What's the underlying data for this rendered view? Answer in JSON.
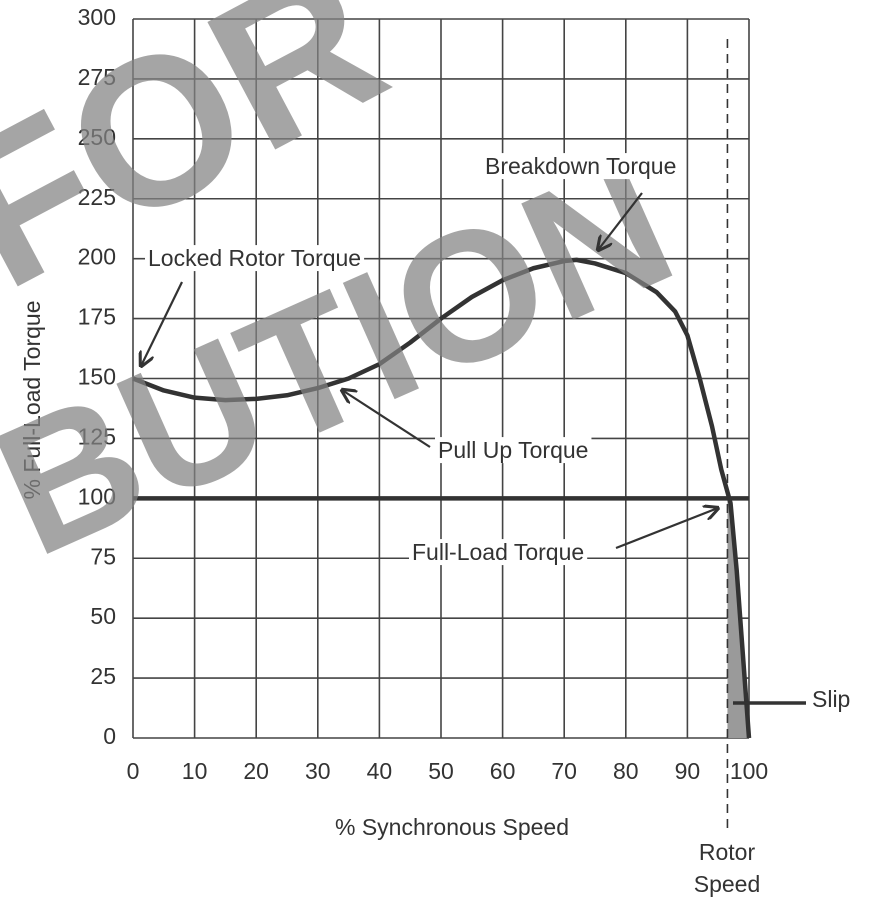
{
  "chart_data": {
    "type": "line",
    "xlabel": "% Synchronous Speed",
    "ylabel": "% Full-Load Torque",
    "series": [
      {
        "x": [
          0,
          5,
          10,
          15,
          20,
          25,
          30,
          35,
          40,
          45,
          50,
          55,
          60,
          65,
          70,
          72,
          75,
          80,
          85,
          88,
          90,
          92,
          94,
          95.5,
          97,
          98,
          99,
          100
        ],
        "values": [
          150,
          145,
          142,
          141,
          141.5,
          143,
          146,
          150,
          156,
          165,
          175,
          184,
          191,
          196,
          199,
          199.5,
          198,
          194,
          186,
          178,
          168,
          150,
          130,
          112,
          98,
          70,
          35,
          0
        ],
        "color": "#333333"
      }
    ],
    "reference_line": 100,
    "rotor_speed": 96.5,
    "xlim": [
      0,
      100
    ],
    "xticks": [
      0,
      10,
      20,
      30,
      40,
      50,
      60,
      70,
      80,
      90,
      100
    ],
    "ylim": [
      0,
      300
    ],
    "yticks": [
      0,
      25,
      50,
      75,
      100,
      125,
      150,
      175,
      200,
      225,
      250,
      275,
      300
    ],
    "grid": true,
    "annotations": [
      "Locked Rotor Torque",
      "Breakdown Torque",
      "Pull Up Torque",
      "Full-Load Torque",
      "Slip",
      "Rotor Speed"
    ],
    "watermark": [
      "FOR",
      "BUTION"
    ]
  }
}
